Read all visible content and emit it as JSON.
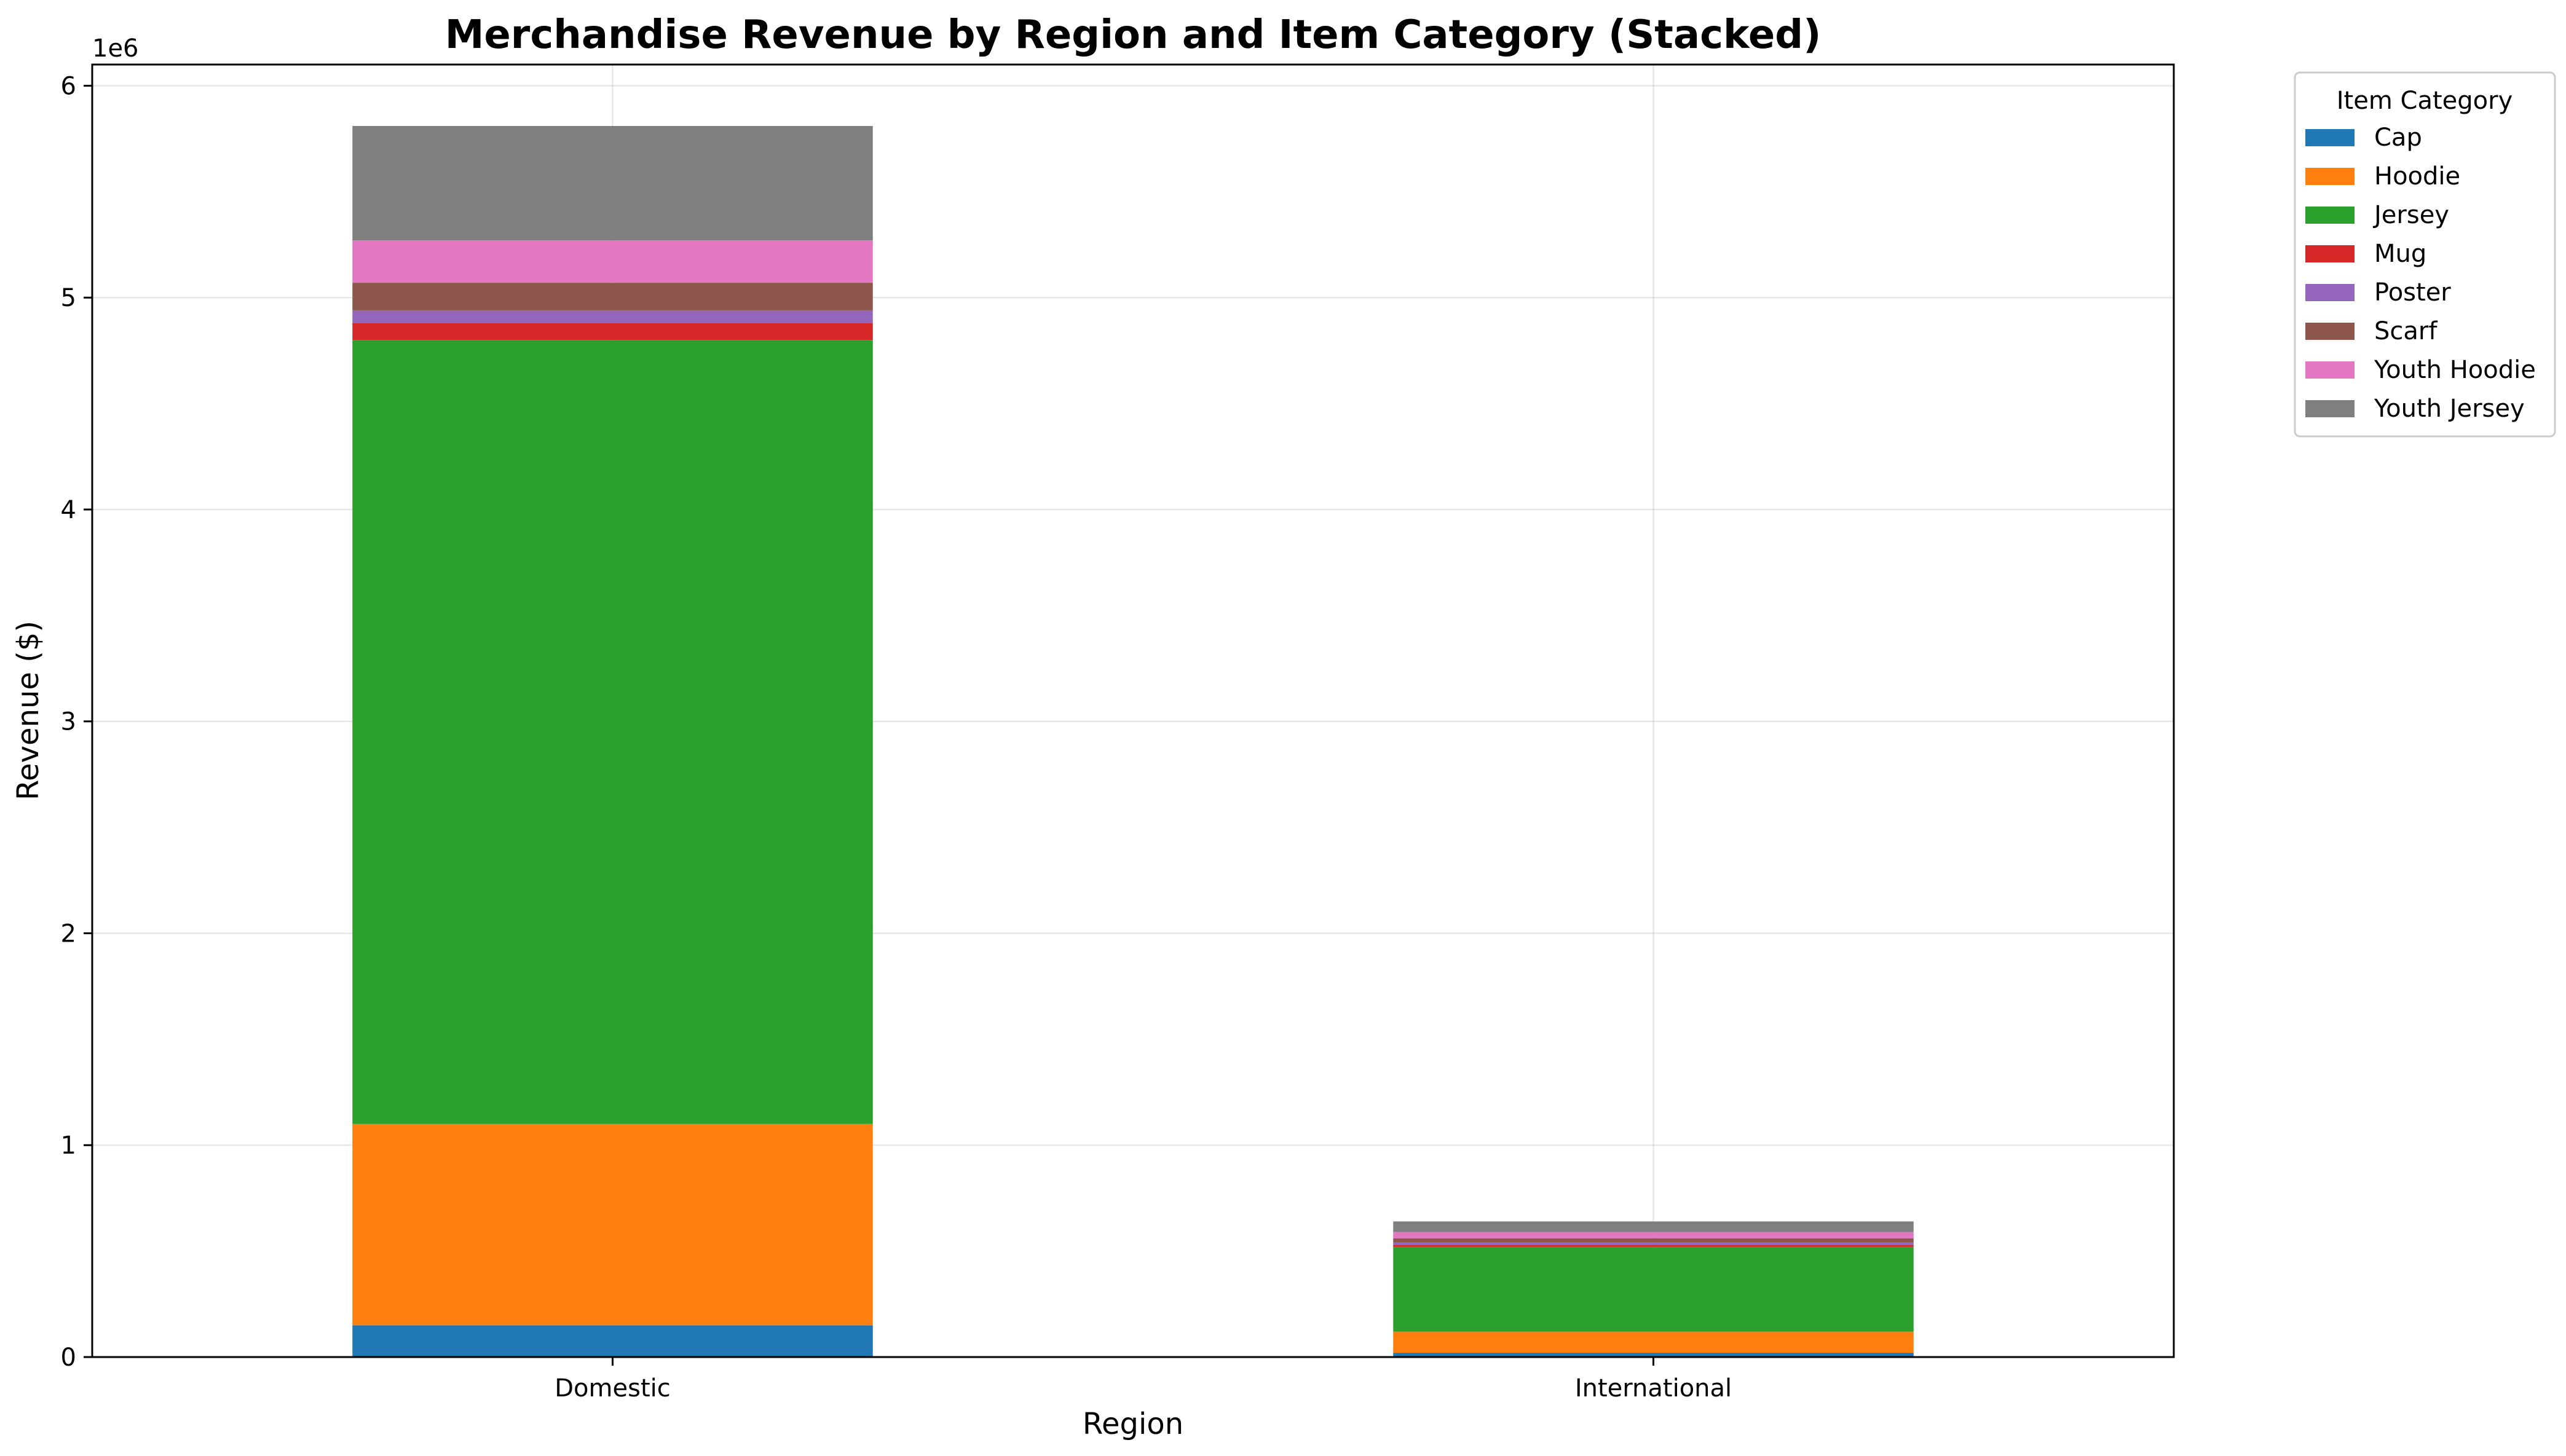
{
  "chart_data": {
    "type": "bar",
    "stacked": true,
    "title": "Merchandise Revenue by Region and Item Category (Stacked)",
    "xlabel": "Region",
    "ylabel": "Revenue ($)",
    "y_offset_text": "1e6",
    "categories": [
      "Domestic",
      "International"
    ],
    "ylim": [
      0,
      6.1
    ],
    "yticks": [
      0,
      1,
      2,
      3,
      4,
      5,
      6
    ],
    "grid": true,
    "legend": {
      "title": "Item Category",
      "placement": "outside-top-right"
    },
    "series": [
      {
        "name": "Cap",
        "color": "#1f77b4",
        "values": [
          0.15,
          0.02
        ]
      },
      {
        "name": "Hoodie",
        "color": "#ff7f0e",
        "values": [
          0.95,
          0.1
        ]
      },
      {
        "name": "Jersey",
        "color": "#2ca02c",
        "values": [
          3.7,
          0.4
        ]
      },
      {
        "name": "Mug",
        "color": "#d62728",
        "values": [
          0.08,
          0.01
        ]
      },
      {
        "name": "Poster",
        "color": "#9467bd",
        "values": [
          0.06,
          0.01
        ]
      },
      {
        "name": "Scarf",
        "color": "#8c564b",
        "values": [
          0.13,
          0.02
        ]
      },
      {
        "name": "Youth Hoodie",
        "color": "#e377c2",
        "values": [
          0.2,
          0.03
        ]
      },
      {
        "name": "Youth Jersey",
        "color": "#7f7f7f",
        "values": [
          0.54,
          0.05
        ]
      }
    ]
  }
}
